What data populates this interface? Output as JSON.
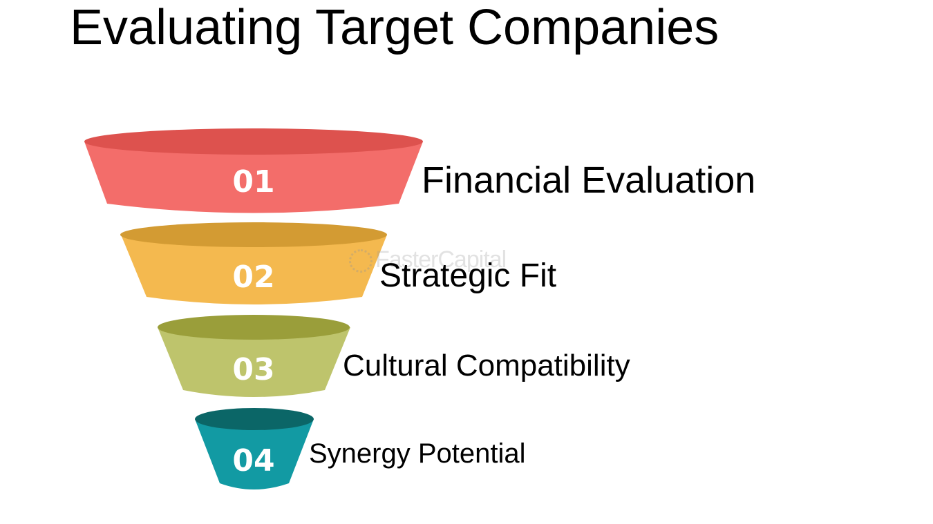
{
  "title": "Evaluating Target Companies",
  "watermark": "FasterCapital",
  "stages": [
    {
      "number": "01",
      "label": "Financial Evaluation",
      "color": "#f36d6a",
      "top_color": "#dd524e"
    },
    {
      "number": "02",
      "label": "Strategic Fit",
      "color": "#f4b94f",
      "top_color": "#d39b33"
    },
    {
      "number": "03",
      "label": "Cultural Compatibility",
      "color": "#bec46c",
      "top_color": "#9a9e3a"
    },
    {
      "number": "04",
      "label": "Synergy Potential",
      "color": "#129aa3",
      "top_color": "#0b6667"
    }
  ]
}
